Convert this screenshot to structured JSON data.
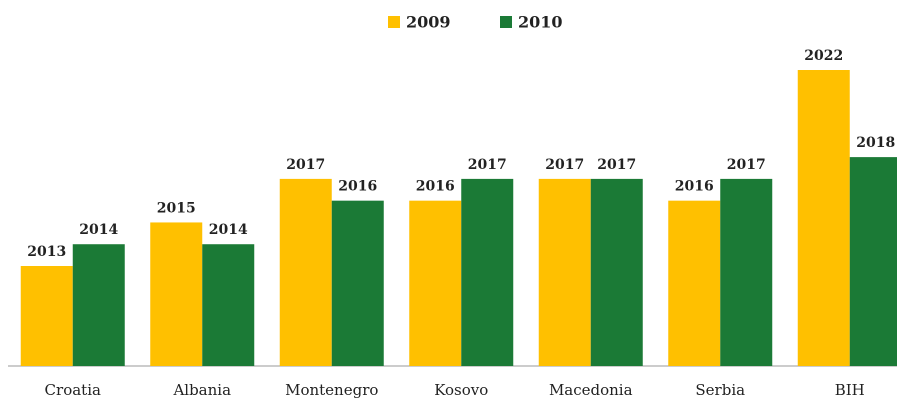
{
  "chart_data": {
    "type": "bar",
    "categories": [
      "Croatia",
      "Albania",
      "Montenegro",
      "Kosovo",
      "Macedonia",
      "Serbia",
      "BIH"
    ],
    "series": [
      {
        "name": "2009",
        "color": "#ffc000",
        "values": [
          2013,
          2015,
          2017,
          2016,
          2017,
          2016,
          2022
        ]
      },
      {
        "name": "2010",
        "color": "#1b7a36",
        "values": [
          2014,
          2014,
          2016,
          2017,
          2017,
          2017,
          2018
        ]
      }
    ]
  }
}
